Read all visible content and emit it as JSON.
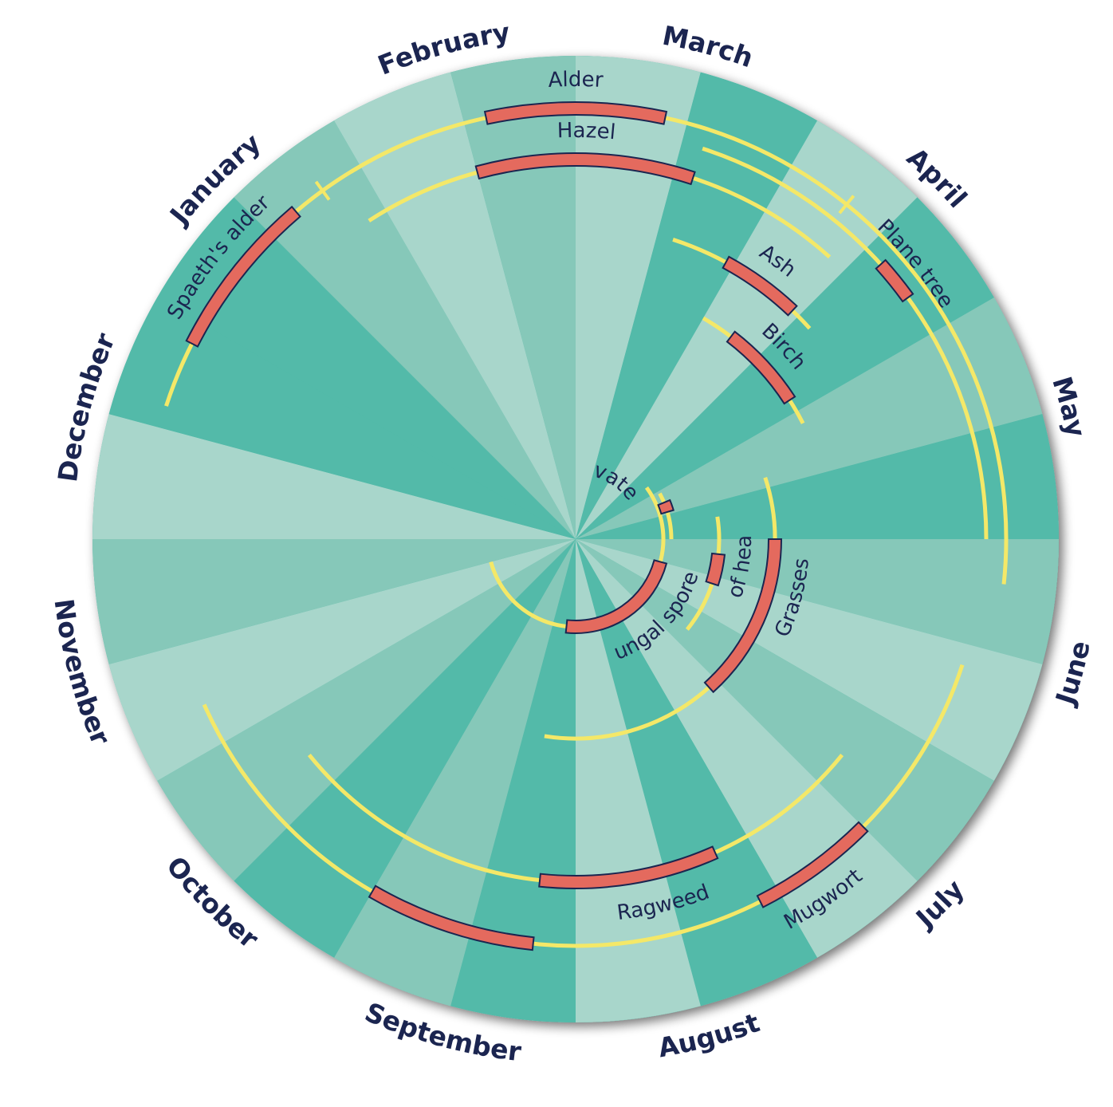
{
  "chart_data": {
    "type": "radial-pollen-calendar",
    "months": [
      "January",
      "February",
      "March",
      "April",
      "May",
      "June",
      "July",
      "August",
      "September",
      "October",
      "November",
      "December"
    ],
    "colors": {
      "sector_light": "#a8d6cb",
      "sector_mid": "#86c8b9",
      "sector_dark": "#53baa9",
      "season_line": "#f4e868",
      "peak_fill": "#e46a5e",
      "peak_stroke": "#1b2550",
      "text": "#1b2550"
    },
    "plants": [
      {
        "name": "Alder",
        "season": [
          0.95,
          5.2
        ],
        "peak": [
          1.6,
          2.4
        ],
        "tick": 0.8,
        "tick2": 3.3
      },
      {
        "name": "Hazel",
        "season": [
          0.9,
          3.4
        ],
        "peak": [
          1.5,
          2.6
        ]
      },
      {
        "name": "Spaeth's alder",
        "season": [
          11.6,
          1.05
        ],
        "peak": [
          11.9,
          0.65
        ]
      },
      {
        "name": "Ash",
        "season": [
          2.6,
          3.6
        ],
        "peak": [
          2.95,
          3.45
        ]
      },
      {
        "name": "Birch",
        "season": [
          3.0,
          4.1
        ],
        "peak": [
          3.25,
          3.9
        ]
      },
      {
        "name": "Plane tree",
        "season": [
          2.6,
          5.0
        ],
        "peak": [
          3.6,
          3.8
        ]
      },
      {
        "name": "Cultivated rye",
        "season": [
          4.05,
          5.0
        ],
        "peak": [
          4.25,
          4.45
        ]
      },
      {
        "name": "Grasses",
        "season": [
          4.4,
          8.3
        ],
        "peak": [
          5.0,
          6.6
        ]
      },
      {
        "name": "Tree of heaven",
        "season": [
          4.7,
          6.3
        ],
        "peak": [
          5.2,
          5.6
        ]
      },
      {
        "name": "Fungal spores",
        "season": [
          3.8,
          10.5
        ],
        "peak": [
          5.5,
          8.2
        ]
      },
      {
        "name": "Ragweed",
        "season": [
          6.3,
          9.7
        ],
        "peak": [
          7.2,
          8.2
        ]
      },
      {
        "name": "Mugwort",
        "season": [
          5.6,
          10.2
        ],
        "peak": [
          6.5,
          7.1
        ],
        "peak2": [
          8.2,
          9.0
        ]
      }
    ]
  }
}
